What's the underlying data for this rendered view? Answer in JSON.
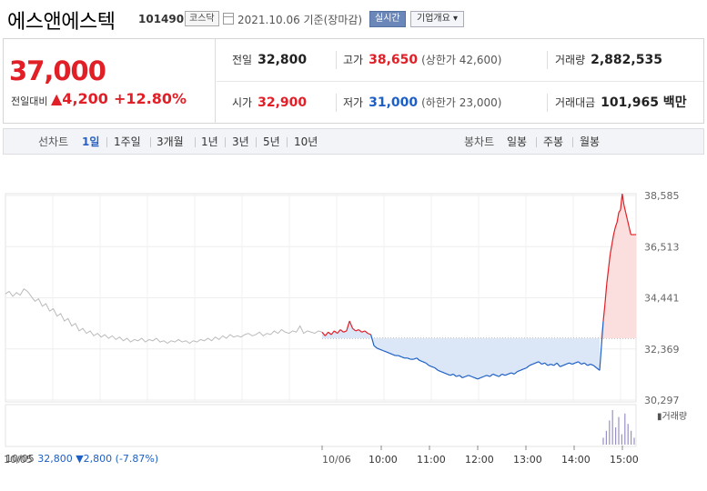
{
  "header": {
    "stock_name": "에스앤에스텍",
    "code": "101490",
    "market": "코스닥",
    "date_text": "2021.10.06 기준(장마감)",
    "realtime_btn": "실시간",
    "company_btn": "기업개요 ▾"
  },
  "price": {
    "current": "37,000",
    "change_label": "전일대비",
    "change": "▲4,200",
    "change_pct": "+12.80%"
  },
  "stats": {
    "prev_close_label": "전일",
    "prev_close": "32,800",
    "high_label": "고가",
    "high": "38,650",
    "upper_limit": "(상한가 42,600)",
    "volume_label": "거래량",
    "volume": "2,882,535",
    "open_label": "시가",
    "open": "32,900",
    "low_label": "저가",
    "low": "31,000",
    "lower_limit": "(하한가 23,000)",
    "amount_label": "거래대금",
    "amount": "101,965 백만"
  },
  "tabs": {
    "line_label": "선차트",
    "line_periods": [
      "1일",
      "1주일",
      "3개월",
      "1년",
      "3년",
      "5년",
      "10년"
    ],
    "active": "1일",
    "candle_label": "봉차트",
    "candle_periods": [
      "일봉",
      "주봉",
      "월봉"
    ]
  },
  "bottom_info": {
    "date": "10/05",
    "price": "32,800",
    "change": "▼2,800",
    "pct": "(-7.87%)"
  },
  "colors": {
    "up": "#e01f27",
    "down": "#1d5fc4",
    "prev_line": "#bbbbbb"
  },
  "chart_data": {
    "type": "line",
    "ylim": [
      30297,
      38585
    ],
    "y_ticks": [
      "38,585",
      "36,513",
      "34,441",
      "32,369",
      "30,297"
    ],
    "y_tick_values": [
      38585,
      36513,
      34441,
      32369,
      30297
    ],
    "baseline": 32800,
    "x_day_labels": [
      "10/05",
      "10/06"
    ],
    "x_time_labels": [
      "10:00",
      "11:00",
      "12:00",
      "13:00",
      "14:00",
      "15:00"
    ],
    "volume_label": "거래량",
    "prev_day": [
      34600,
      34700,
      34500,
      34650,
      34550,
      34800,
      34700,
      34500,
      34300,
      34400,
      34100,
      34200,
      33900,
      34000,
      33700,
      33800,
      33500,
      33600,
      33300,
      33400,
      33100,
      33200,
      33000,
      33100,
      32900,
      33000,
      32850,
      32950,
      32800,
      32900,
      32750,
      32850,
      32700,
      32800,
      32650,
      32750,
      32700,
      32800,
      32650,
      32750,
      32700,
      32800,
      32650,
      32700,
      32600,
      32700,
      32650,
      32750,
      32650,
      32700,
      32600,
      32700,
      32650,
      32750,
      32700,
      32800,
      32700,
      32850,
      32750,
      32900,
      32800,
      32950,
      32850,
      32900,
      32850,
      32950,
      33000,
      32900,
      32950,
      33050,
      32900,
      33000,
      32950,
      33100,
      33000,
      33150,
      33050,
      33000,
      33100,
      33050,
      33300,
      33000,
      33100,
      33050,
      33000,
      33100,
      33050
    ],
    "today_am": [
      33050,
      32900,
      33050,
      32950,
      33100,
      33000,
      33150,
      33050,
      33100,
      33500,
      33200,
      33100,
      33150,
      33050,
      33100,
      33000,
      32950,
      32500,
      32400,
      32350,
      32300,
      32250,
      32200,
      32150,
      32100,
      32100,
      32050,
      32000,
      32000,
      31950,
      31950,
      32000,
      31900,
      31850,
      31800,
      31700,
      31650,
      31600,
      31500,
      31450,
      31400,
      31350,
      31300,
      31350,
      31250,
      31300,
      31200,
      31250,
      31300,
      31250,
      31200,
      31150,
      31200,
      31250,
      31300,
      31250,
      31350,
      31300,
      31250,
      31350,
      31300,
      31350,
      31400,
      31350,
      31450,
      31500,
      31550,
      31600,
      31700,
      31750,
      31800,
      31850,
      31750,
      31800,
      31700,
      31750,
      31700,
      31800,
      31650,
      31700,
      31750,
      31800,
      31750,
      31800,
      31850,
      31750,
      31800,
      31700,
      31750,
      31700,
      31600,
      31500
    ],
    "today_pm": [
      33500,
      34200,
      35000,
      35600,
      36200,
      36600,
      37000,
      37300,
      37500,
      37900,
      38000,
      38650,
      38200,
      37900,
      37600,
      37300,
      37000,
      37000,
      37000,
      37000
    ],
    "volume": [
      0.2,
      0.4,
      0.7,
      1.0,
      0.5,
      0.8,
      0.3,
      0.9,
      0.6,
      0.4,
      0.2
    ]
  }
}
